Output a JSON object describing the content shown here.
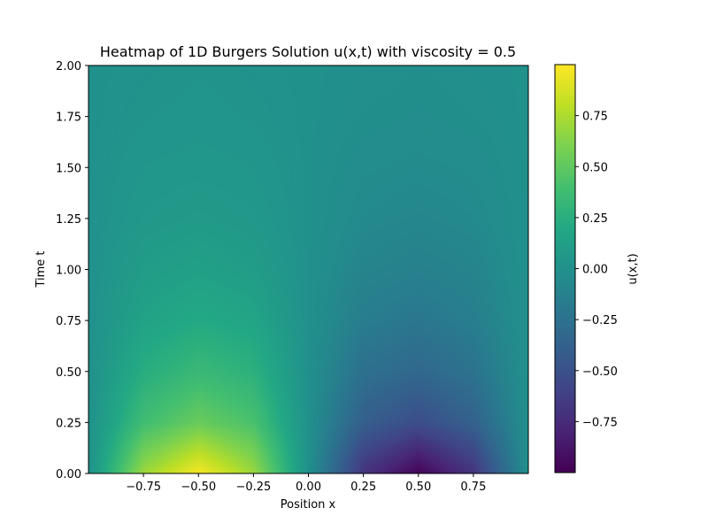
{
  "chart_data": {
    "type": "heatmap",
    "title": "Heatmap of 1D Burgers Solution u(x,t) with viscosity = 0.5",
    "xlabel": "Position x",
    "ylabel": "Time t",
    "xlim": [
      -1.0,
      1.0
    ],
    "ylim": [
      0.0,
      2.0
    ],
    "xticks": [
      -0.75,
      -0.5,
      -0.25,
      0.0,
      0.25,
      0.5,
      0.75
    ],
    "xtick_labels": [
      "−0.75",
      "−0.50",
      "−0.25",
      "0.00",
      "0.25",
      "0.50",
      "0.75"
    ],
    "yticks": [
      0.0,
      0.25,
      0.5,
      0.75,
      1.0,
      1.25,
      1.5,
      1.75,
      2.0
    ],
    "ytick_labels": [
      "0.00",
      "0.25",
      "0.50",
      "0.75",
      "1.00",
      "1.25",
      "1.50",
      "1.75",
      "2.00"
    ],
    "colorbar": {
      "label": "u(x,t)",
      "colormap": "viridis",
      "range": [
        -1.0,
        1.0
      ],
      "ticks": [
        -0.75,
        -0.5,
        -0.25,
        0.0,
        0.25,
        0.5,
        0.75
      ],
      "tick_labels": [
        "−0.75",
        "−0.50",
        "−0.25",
        "0.00",
        "0.25",
        "0.50",
        "0.75"
      ]
    },
    "grid": false,
    "x": [
      -1.0,
      -0.75,
      -0.5,
      -0.25,
      0.0,
      0.25,
      0.5,
      0.75,
      1.0
    ],
    "t": [
      0.0,
      0.25,
      0.5,
      0.75,
      1.0,
      1.25,
      1.5,
      1.75,
      2.0
    ],
    "u": [
      [
        0.0,
        0.7,
        0.98,
        0.7,
        0.0,
        -0.7,
        -0.98,
        -0.7,
        0.0
      ],
      [
        0.0,
        0.38,
        0.54,
        0.42,
        0.0,
        -0.4,
        -0.53,
        -0.38,
        0.0
      ],
      [
        0.0,
        0.24,
        0.34,
        0.27,
        0.0,
        -0.26,
        -0.33,
        -0.24,
        0.0
      ],
      [
        0.0,
        0.15,
        0.21,
        0.17,
        0.0,
        -0.16,
        -0.21,
        -0.15,
        0.0
      ],
      [
        0.0,
        0.1,
        0.13,
        0.1,
        0.0,
        -0.1,
        -0.13,
        -0.1,
        0.0
      ],
      [
        0.0,
        0.06,
        0.08,
        0.06,
        0.0,
        -0.06,
        -0.08,
        -0.06,
        0.0
      ],
      [
        0.0,
        0.04,
        0.05,
        0.04,
        0.0,
        -0.04,
        -0.05,
        -0.04,
        0.0
      ],
      [
        0.0,
        0.02,
        0.03,
        0.02,
        0.0,
        -0.02,
        -0.03,
        -0.02,
        0.0
      ],
      [
        0.0,
        0.01,
        0.02,
        0.01,
        0.0,
        -0.01,
        -0.02,
        -0.01,
        0.0
      ]
    ]
  }
}
